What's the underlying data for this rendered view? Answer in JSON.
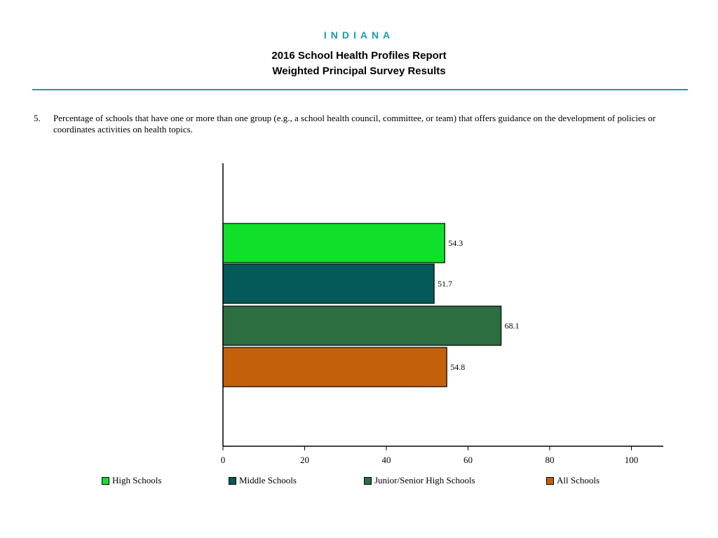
{
  "header": {
    "state": "INDIANA",
    "title_line1": "2016 School Health Profiles Report",
    "title_line2": "Weighted Principal Survey Results"
  },
  "question": {
    "number": "5.",
    "text": "Percentage of schools that have one or more than one group (e.g., a school health council, committee, or team) that offers guidance on the development of policies or coordinates activities on health topics."
  },
  "chart_data": {
    "type": "bar",
    "orientation": "horizontal",
    "categories": [
      "High Schools",
      "Middle Schools",
      "Junior/Senior High Schools",
      "All Schools"
    ],
    "values": [
      54.3,
      51.7,
      68.1,
      54.8
    ],
    "value_labels": [
      "54.3",
      "51.7",
      "68.1",
      "54.8"
    ],
    "colors": [
      "#11e02a",
      "#045a58",
      "#2c6e40",
      "#c4600c"
    ],
    "xlim": [
      0,
      100
    ],
    "xticks": [
      "0",
      "20",
      "40",
      "60",
      "80",
      "100"
    ],
    "grid": false,
    "legend_position": "bottom"
  }
}
